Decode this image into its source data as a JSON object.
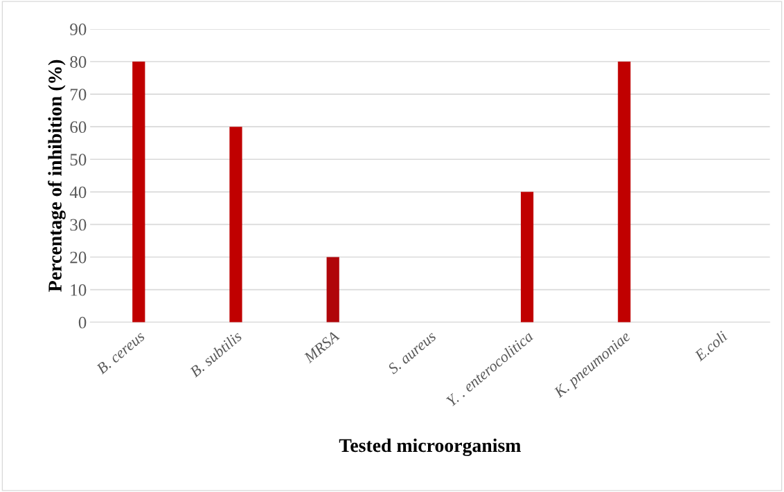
{
  "chart_data": {
    "type": "bar",
    "categories": [
      "B. cereus",
      "B. subtilis",
      "MRSA",
      "S. aureus",
      "Y. . enterocolitica",
      "K. pneumoniae",
      "E.coli"
    ],
    "values": [
      80,
      60,
      20,
      0,
      40,
      80,
      0
    ],
    "colors": [
      "#c00000",
      "#c00000",
      "#b0060a",
      "#c00000",
      "#c00000",
      "#c00000",
      "#c00000"
    ],
    "xlabel": "Tested microorganism",
    "ylabel": "Percentage of inhibition (%)",
    "ylim": [
      0,
      90
    ],
    "yticks": [
      0,
      10,
      20,
      30,
      40,
      50,
      60,
      70,
      80,
      90
    ],
    "grid": "y"
  }
}
